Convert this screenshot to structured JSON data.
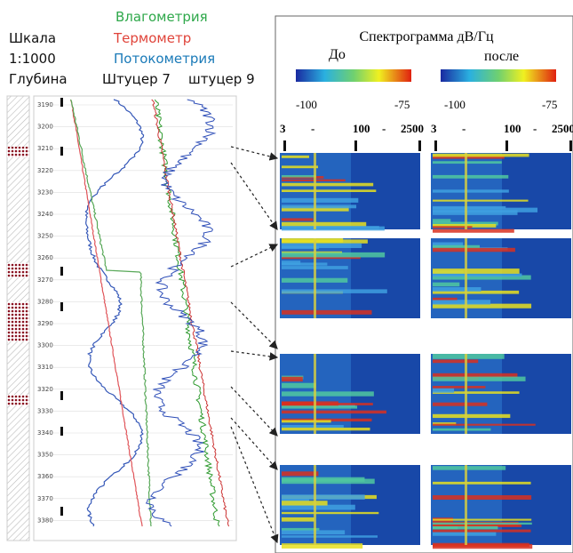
{
  "legend": {
    "moisture": "Влагометрия",
    "scale_label": "Шкала",
    "thermometer": "Термометр",
    "scale_value": "1:1000",
    "flow": "Потокометрия",
    "depth_label": "Глубина",
    "choke7": "Штуцер 7",
    "choke9": "штуцер 9"
  },
  "depth_ticks": [
    3190,
    3200,
    3210,
    3220,
    3230,
    3240,
    3250,
    3260,
    3270,
    3280,
    3290,
    3300,
    3310,
    3320,
    3330,
    3340,
    3350,
    3360,
    3370,
    3380
  ],
  "spectrogram": {
    "title": "Спектрограмма дВ/Гц",
    "before": "До",
    "after": "после",
    "colorbar_min": -100,
    "colorbar_max": -75,
    "freq_labels": [
      3,
      "-",
      100,
      "-",
      2500
    ]
  }
}
